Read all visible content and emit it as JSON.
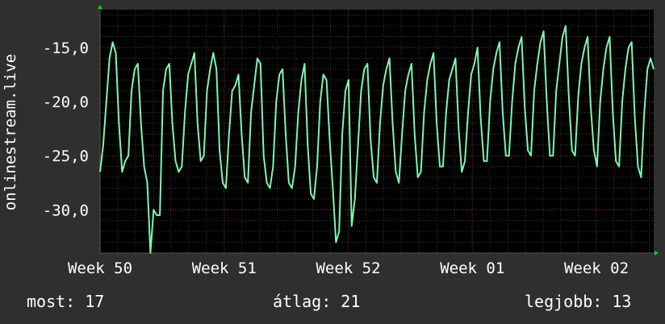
{
  "chart_data": {
    "type": "line",
    "title": "",
    "ylabel": "onlinestream.live",
    "xlabel": "",
    "ylim": [
      -34,
      -11.5
    ],
    "xlim": [
      0,
      174
    ],
    "yticks": [
      {
        "value": -15,
        "label": "-15,0"
      },
      {
        "value": -20,
        "label": "-20,0"
      },
      {
        "value": -25,
        "label": "-25,0"
      },
      {
        "value": -30,
        "label": "-30,0"
      }
    ],
    "xticks": [
      {
        "value": 0,
        "label": "Week 50"
      },
      {
        "value": 39,
        "label": "Week 51"
      },
      {
        "value": 78,
        "label": "Week 52"
      },
      {
        "value": 117,
        "label": "Week 01"
      },
      {
        "value": 156,
        "label": "Week 02"
      }
    ],
    "grid": true,
    "colors": {
      "background": "#2f2f2f",
      "plot_background": "#000000",
      "line": "#7ff5b4",
      "major_grid": "#8a2a2a",
      "minor_grid": "#3a3a3a",
      "axis_arrow": "#00dd00",
      "text": "#ffffff"
    },
    "series": [
      {
        "values": [
          -26.5,
          -24,
          -20,
          -16,
          -14.5,
          -15.5,
          -22,
          -26.5,
          -25.5,
          -25,
          -19,
          -17,
          -16.5,
          -22,
          -26,
          -27.5,
          -34,
          -30,
          -30.5,
          -30.5,
          -19,
          -17,
          -16.5,
          -22,
          -25.5,
          -26.5,
          -26,
          -21,
          -17.5,
          -16.5,
          -15.5,
          -22,
          -25.5,
          -25,
          -19,
          -17,
          -15.5,
          -17,
          -24.5,
          -27.5,
          -28,
          -23,
          -19,
          -18.5,
          -17.5,
          -23,
          -27,
          -27.5,
          -21,
          -18.5,
          -16,
          -16.5,
          -25,
          -27.5,
          -28,
          -26,
          -20,
          -17.5,
          -17,
          -23,
          -27.5,
          -28,
          -26,
          -21,
          -18,
          -16.5,
          -24,
          -28.5,
          -29,
          -26,
          -20,
          -17.5,
          -18,
          -23.5,
          -28,
          -33,
          -32,
          -23,
          -19,
          -18,
          -31.5,
          -29,
          -24,
          -19,
          -17,
          -16.5,
          -23.5,
          -27,
          -27.5,
          -22,
          -18.5,
          -17,
          -16,
          -22,
          -26.5,
          -27.5,
          -23,
          -19,
          -17.5,
          -16.5,
          -23,
          -27,
          -26.5,
          -21,
          -18,
          -16.5,
          -15.5,
          -22,
          -26,
          -26,
          -21,
          -18,
          -17,
          -16,
          -22.5,
          -26.5,
          -25.5,
          -21,
          -17.5,
          -16.5,
          -15,
          -21.5,
          -25.5,
          -25.5,
          -20,
          -17,
          -15.5,
          -14.5,
          -21,
          -25,
          -25,
          -20,
          -16.5,
          -15,
          -14,
          -20.5,
          -24.5,
          -25,
          -19,
          -16.5,
          -14.5,
          -13.5,
          -20,
          -25,
          -25,
          -19,
          -16.5,
          -14,
          -13,
          -19.5,
          -24.5,
          -25,
          -19.5,
          -16.5,
          -15,
          -14,
          -20.5,
          -24.5,
          -26,
          -20,
          -17,
          -15,
          -14,
          -21,
          -25.5,
          -26,
          -20,
          -17,
          -15,
          -14.5,
          -21.5,
          -26,
          -27,
          -21,
          -17,
          -16,
          -17
        ]
      }
    ]
  },
  "footer": {
    "current_label": "most: 17",
    "average_label": "átlag: 21",
    "best_label": "legjobb: 13"
  }
}
